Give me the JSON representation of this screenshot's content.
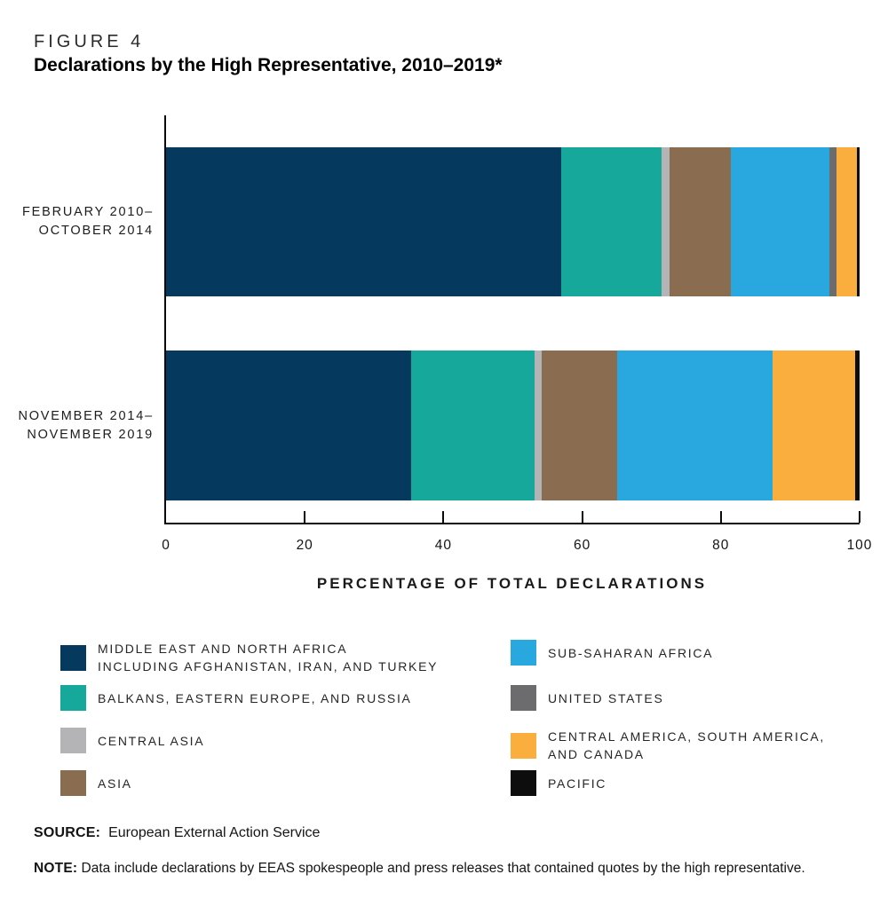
{
  "figure": {
    "label": "FIGURE 4",
    "title": "Declarations by the High Representative, 2010–2019*"
  },
  "chart_data": {
    "type": "bar",
    "stacked": true,
    "orientation": "horizontal",
    "title": "Declarations by the High Representative, 2010–2019*",
    "categories": [
      {
        "key": "feb-2010-oct-2014",
        "lines": [
          "FEBRUARY 2010–",
          "OCTOBER 2014"
        ]
      },
      {
        "key": "nov-2014-nov-2019",
        "lines": [
          "NOVEMBER 2014–",
          "NOVEMBER 2019"
        ]
      }
    ],
    "series": [
      {
        "key": "mena",
        "name": "MIDDLE EAST AND NORTH AFRICA INCLUDING AFGHANISTAN, IRAN, AND TURKEY",
        "color": "#05395d",
        "values": [
          57.0,
          35.4
        ]
      },
      {
        "key": "balkans-eastern-europe-russia",
        "name": "BALKANS, EASTERN EUROPE, AND RUSSIA",
        "color": "#16a89a",
        "values": [
          14.5,
          17.7
        ]
      },
      {
        "key": "central-asia",
        "name": "CENTRAL ASIA",
        "color": "#b4b4b6",
        "values": [
          1.1,
          1.0
        ]
      },
      {
        "key": "asia",
        "name": "ASIA",
        "color": "#8a6c50",
        "values": [
          8.8,
          11.0
        ]
      },
      {
        "key": "sub-saharan-africa",
        "name": "SUB-SAHARAN AFRICA",
        "color": "#29a8e0",
        "values": [
          14.3,
          22.4
        ]
      },
      {
        "key": "united-states",
        "name": "UNITED STATES",
        "color": "#6c6c6e",
        "values": [
          1.0,
          0
        ]
      },
      {
        "key": "americas",
        "name": "CENTRAL AMERICA, SOUTH AMERICA, AND CANADA",
        "color": "#faae3d",
        "values": [
          2.9,
          11.9
        ]
      },
      {
        "key": "pacific",
        "name": "PACIFIC",
        "color": "#0d0d0d",
        "values": [
          0.4,
          0.6
        ]
      }
    ],
    "xlabel": "PERCENTAGE OF TOTAL DECLARATIONS",
    "xlim": [
      0,
      100
    ],
    "xticks": [
      0,
      20,
      40,
      60,
      80,
      100
    ],
    "grid": false,
    "legend_position": "bottom"
  },
  "legend": {
    "columns": [
      {
        "items": [
          {
            "series": 0,
            "lines": [
              "MIDDLE EAST AND NORTH AFRICA",
              "INCLUDING AFGHANISTAN, IRAN, AND TURKEY"
            ]
          },
          {
            "series": 1,
            "lines": [
              "BALKANS, EASTERN EUROPE, AND RUSSIA"
            ]
          },
          {
            "series": 2,
            "lines": [
              "CENTRAL ASIA"
            ]
          },
          {
            "series": 3,
            "lines": [
              "ASIA"
            ]
          }
        ]
      },
      {
        "items": [
          {
            "series": 4,
            "lines": [
              "SUB-SAHARAN AFRICA"
            ]
          },
          {
            "series": 5,
            "lines": [
              "UNITED STATES"
            ]
          },
          {
            "series": 6,
            "lines": [
              "CENTRAL AMERICA, SOUTH AMERICA,",
              "AND CANADA"
            ]
          },
          {
            "series": 7,
            "lines": [
              "PACIFIC"
            ]
          }
        ]
      }
    ]
  },
  "footer": {
    "source_label": "SOURCE:",
    "source_text": "European External Action Service",
    "note_label": "NOTE:",
    "note_text": "Data include declarations by EEAS spokespeople and press releases that contained quotes by the high representative."
  }
}
